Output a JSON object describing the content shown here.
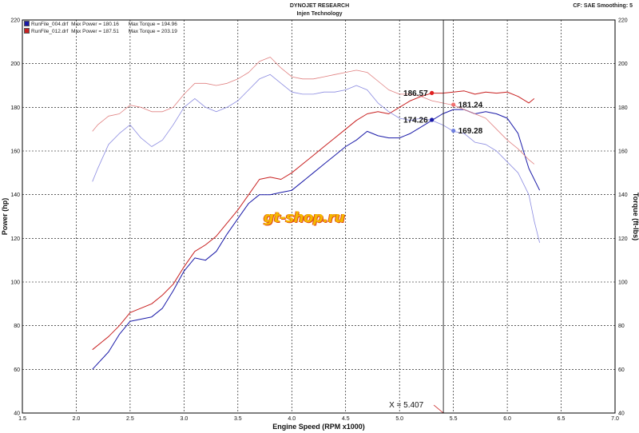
{
  "header": {
    "title": "DYNOJET RESEARCH",
    "subtitle": "Injen Technology",
    "settings": "CF: SAE  Smoothing: 5"
  },
  "legend": [
    {
      "file": "RunFile_004.drf",
      "power_label": "Max Power =",
      "power": "180.16",
      "torque_label": "Max Torque =",
      "torque": "194.96",
      "color": "#1a1aa8"
    },
    {
      "file": "RunFile_012.drf",
      "power_label": "Max Power =",
      "power": "187.51",
      "torque_label": "Max Torque =",
      "torque": "203.19",
      "color": "#c82020"
    }
  ],
  "watermark": "gt-shop.ru",
  "chart_data": {
    "type": "line",
    "xlabel": "Engine Speed (RPM x1000)",
    "ylabel": "Power (hp)",
    "y2label": "Torque (ft-lbs)",
    "xlim": [
      1.5,
      7.0
    ],
    "ylim": [
      40,
      220
    ],
    "y2lim": [
      40,
      220
    ],
    "x_ticks": [
      "1.5",
      "2.0",
      "2.5",
      "3.0",
      "3.5",
      "4.0",
      "4.5",
      "5.0",
      "5.5",
      "6.0",
      "6.5",
      "7.0"
    ],
    "y_ticks": [
      "40",
      "60",
      "80",
      "100",
      "120",
      "140",
      "160",
      "180",
      "200",
      "220"
    ],
    "grid": true,
    "cursor": {
      "x": 5.407,
      "label": "X = 5.407"
    },
    "markers": [
      {
        "label": "186.57",
        "x": 5.3,
        "y": 186.57,
        "color": "#e02020"
      },
      {
        "label": "181.24",
        "x": 5.5,
        "y": 181.24,
        "color": "#f07070"
      },
      {
        "label": "174.26",
        "x": 5.3,
        "y": 174.26,
        "color": "#1a1aa8"
      },
      {
        "label": "169.28",
        "x": 5.5,
        "y": 169.28,
        "color": "#7080e0"
      }
    ],
    "series": [
      {
        "role": "power-004",
        "color": "#1a1aa8",
        "width": 1.0,
        "points": [
          [
            2.15,
            60
          ],
          [
            2.3,
            68
          ],
          [
            2.4,
            76
          ],
          [
            2.5,
            82
          ],
          [
            2.6,
            83
          ],
          [
            2.7,
            84
          ],
          [
            2.8,
            88
          ],
          [
            2.9,
            96
          ],
          [
            3.0,
            105
          ],
          [
            3.1,
            111
          ],
          [
            3.2,
            110
          ],
          [
            3.3,
            114
          ],
          [
            3.4,
            122
          ],
          [
            3.5,
            129
          ],
          [
            3.6,
            136
          ],
          [
            3.7,
            140
          ],
          [
            3.8,
            140
          ],
          [
            3.9,
            141
          ],
          [
            4.0,
            142
          ],
          [
            4.1,
            146
          ],
          [
            4.2,
            150
          ],
          [
            4.3,
            154
          ],
          [
            4.4,
            158
          ],
          [
            4.5,
            162
          ],
          [
            4.6,
            165
          ],
          [
            4.7,
            169
          ],
          [
            4.8,
            167
          ],
          [
            4.9,
            166
          ],
          [
            5.0,
            166
          ],
          [
            5.1,
            168
          ],
          [
            5.2,
            171
          ],
          [
            5.3,
            174
          ],
          [
            5.4,
            177
          ],
          [
            5.5,
            179
          ],
          [
            5.6,
            179
          ],
          [
            5.7,
            177
          ],
          [
            5.8,
            178
          ],
          [
            5.9,
            177
          ],
          [
            6.0,
            175
          ],
          [
            6.1,
            168
          ],
          [
            6.2,
            152
          ],
          [
            6.3,
            142
          ]
        ]
      },
      {
        "role": "power-012",
        "color": "#c82020",
        "width": 1.0,
        "points": [
          [
            2.15,
            69
          ],
          [
            2.3,
            75
          ],
          [
            2.4,
            80
          ],
          [
            2.5,
            86
          ],
          [
            2.6,
            88
          ],
          [
            2.7,
            90
          ],
          [
            2.8,
            94
          ],
          [
            2.9,
            99
          ],
          [
            3.0,
            107
          ],
          [
            3.1,
            114
          ],
          [
            3.2,
            117
          ],
          [
            3.3,
            121
          ],
          [
            3.4,
            127
          ],
          [
            3.5,
            133
          ],
          [
            3.6,
            140
          ],
          [
            3.7,
            147
          ],
          [
            3.8,
            148
          ],
          [
            3.9,
            147
          ],
          [
            4.0,
            150
          ],
          [
            4.1,
            154
          ],
          [
            4.2,
            158
          ],
          [
            4.3,
            162
          ],
          [
            4.4,
            166
          ],
          [
            4.5,
            170
          ],
          [
            4.6,
            174
          ],
          [
            4.7,
            177
          ],
          [
            4.8,
            178
          ],
          [
            4.9,
            177
          ],
          [
            5.0,
            180
          ],
          [
            5.1,
            183
          ],
          [
            5.2,
            185
          ],
          [
            5.3,
            186.5
          ],
          [
            5.4,
            186.5
          ],
          [
            5.5,
            187
          ],
          [
            5.6,
            187.5
          ],
          [
            5.7,
            186
          ],
          [
            5.8,
            187
          ],
          [
            5.9,
            186.5
          ],
          [
            6.0,
            187
          ],
          [
            6.1,
            185
          ],
          [
            6.2,
            182
          ],
          [
            6.25,
            184
          ]
        ]
      },
      {
        "role": "torque-004",
        "color": "#8a8ae0",
        "width": 0.8,
        "points": [
          [
            2.15,
            146
          ],
          [
            2.2,
            152
          ],
          [
            2.3,
            163
          ],
          [
            2.4,
            168
          ],
          [
            2.5,
            172
          ],
          [
            2.6,
            166
          ],
          [
            2.7,
            162
          ],
          [
            2.8,
            165
          ],
          [
            2.9,
            172
          ],
          [
            3.0,
            180
          ],
          [
            3.1,
            184
          ],
          [
            3.2,
            180
          ],
          [
            3.3,
            178
          ],
          [
            3.4,
            180
          ],
          [
            3.5,
            183
          ],
          [
            3.6,
            188
          ],
          [
            3.7,
            193
          ],
          [
            3.8,
            195
          ],
          [
            3.9,
            191
          ],
          [
            4.0,
            187
          ],
          [
            4.1,
            186
          ],
          [
            4.2,
            186
          ],
          [
            4.3,
            187
          ],
          [
            4.4,
            187
          ],
          [
            4.5,
            188
          ],
          [
            4.6,
            190
          ],
          [
            4.7,
            188
          ],
          [
            4.8,
            182
          ],
          [
            4.9,
            178
          ],
          [
            5.0,
            175
          ],
          [
            5.1,
            174
          ],
          [
            5.2,
            175
          ],
          [
            5.3,
            174
          ],
          [
            5.4,
            172
          ],
          [
            5.5,
            169
          ],
          [
            5.6,
            168
          ],
          [
            5.7,
            164
          ],
          [
            5.8,
            163
          ],
          [
            5.9,
            160
          ],
          [
            6.0,
            155
          ],
          [
            6.1,
            150
          ],
          [
            6.2,
            140
          ],
          [
            6.25,
            128
          ],
          [
            6.3,
            118
          ]
        ]
      },
      {
        "role": "torque-012",
        "color": "#e08080",
        "width": 0.8,
        "points": [
          [
            2.15,
            169
          ],
          [
            2.2,
            172
          ],
          [
            2.3,
            176
          ],
          [
            2.4,
            177
          ],
          [
            2.5,
            181
          ],
          [
            2.6,
            180
          ],
          [
            2.7,
            178
          ],
          [
            2.8,
            178
          ],
          [
            2.9,
            180
          ],
          [
            3.0,
            186
          ],
          [
            3.1,
            191
          ],
          [
            3.2,
            191
          ],
          [
            3.3,
            190
          ],
          [
            3.4,
            191
          ],
          [
            3.5,
            193
          ],
          [
            3.6,
            196
          ],
          [
            3.7,
            201
          ],
          [
            3.8,
            203
          ],
          [
            3.9,
            198
          ],
          [
            4.0,
            194
          ],
          [
            4.1,
            193
          ],
          [
            4.2,
            193
          ],
          [
            4.3,
            194
          ],
          [
            4.4,
            195
          ],
          [
            4.5,
            196
          ],
          [
            4.6,
            197
          ],
          [
            4.7,
            196
          ],
          [
            4.8,
            192
          ],
          [
            4.9,
            188
          ],
          [
            5.0,
            186
          ],
          [
            5.1,
            186
          ],
          [
            5.2,
            185
          ],
          [
            5.3,
            183
          ],
          [
            5.4,
            182
          ],
          [
            5.5,
            181
          ],
          [
            5.6,
            179
          ],
          [
            5.7,
            177
          ],
          [
            5.8,
            175
          ],
          [
            5.9,
            170
          ],
          [
            6.0,
            165
          ],
          [
            6.1,
            161
          ],
          [
            6.2,
            156
          ],
          [
            6.25,
            154
          ]
        ]
      }
    ]
  }
}
